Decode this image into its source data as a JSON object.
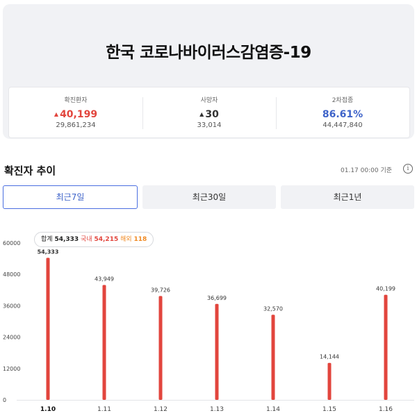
{
  "header": {
    "title": "한국 코로나바이러스감염증-19",
    "stats": [
      {
        "label": "확진환자",
        "arrow": "▲",
        "value": "40,199",
        "total": "29,861,234",
        "color": "#e2453d"
      },
      {
        "label": "사망자",
        "arrow": "▲",
        "value": "30",
        "total": "33,014",
        "color": "#333333"
      },
      {
        "label": "2차접종",
        "arrow": "",
        "value": "86.61%",
        "total": "44,447,840",
        "color": "#3e63c9"
      }
    ]
  },
  "section": {
    "title": "확진자 추이",
    "base_time": "01.17 00:00 기준",
    "info": "i"
  },
  "tabs": [
    {
      "label": "최근7일",
      "active": true
    },
    {
      "label": "최근30일",
      "active": false
    },
    {
      "label": "최근1년",
      "active": false
    }
  ],
  "tooltip": {
    "total_label": "합계",
    "total_value": "54,333",
    "domestic_label": "국내",
    "domestic_value": "54,215",
    "overseas_label": "해외",
    "overseas_value": "118"
  },
  "chart_data": {
    "type": "bar",
    "categories": [
      "1.10",
      "1.11",
      "1.12",
      "1.13",
      "1.14",
      "1.15",
      "1.16"
    ],
    "values": [
      54333,
      43949,
      39726,
      36699,
      32570,
      14144,
      40199
    ],
    "value_labels": [
      "54,333",
      "43,949",
      "39,726",
      "36,699",
      "32,570",
      "14,144",
      "40,199"
    ],
    "y_ticks": [
      0,
      12000,
      24000,
      36000,
      48000,
      60000
    ],
    "ylim": [
      0,
      60000
    ],
    "selected_index": 0,
    "bar_color": "#e2453d",
    "grid": false
  }
}
